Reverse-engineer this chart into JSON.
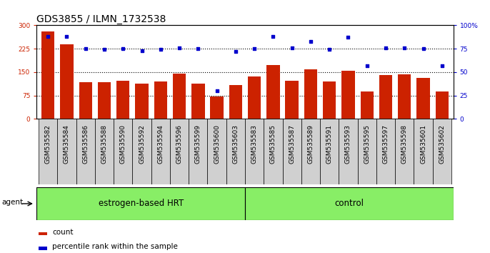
{
  "title": "GDS3855 / ILMN_1732538",
  "samples": [
    "GSM535582",
    "GSM535584",
    "GSM535586",
    "GSM535588",
    "GSM535590",
    "GSM535592",
    "GSM535594",
    "GSM535596",
    "GSM535599",
    "GSM535600",
    "GSM535603",
    "GSM535583",
    "GSM535585",
    "GSM535587",
    "GSM535589",
    "GSM535591",
    "GSM535593",
    "GSM535595",
    "GSM535597",
    "GSM535598",
    "GSM535601",
    "GSM535602"
  ],
  "counts": [
    280,
    240,
    117,
    117,
    122,
    112,
    120,
    145,
    112,
    73,
    108,
    135,
    172,
    122,
    158,
    120,
    155,
    88,
    140,
    142,
    132,
    88
  ],
  "percentiles": [
    88,
    88,
    75,
    74,
    75,
    73,
    74,
    76,
    75,
    30,
    72,
    75,
    88,
    76,
    83,
    74,
    87,
    57,
    76,
    76,
    75,
    57
  ],
  "group_labels": [
    "estrogen-based HRT",
    "control"
  ],
  "group_split": 11,
  "n_samples": 22,
  "bar_color": "#cc2200",
  "dot_color": "#0000cc",
  "group_color": "#88ee66",
  "tickbox_color": "#d0d0d0",
  "ylim_left": [
    0,
    300
  ],
  "ylim_right": [
    0,
    100
  ],
  "yticks_left": [
    0,
    75,
    150,
    225,
    300
  ],
  "yticks_right": [
    0,
    25,
    50,
    75,
    100
  ],
  "agent_label": "agent",
  "legend_count": "count",
  "legend_pct": "percentile rank within the sample",
  "title_fontsize": 10,
  "tick_fontsize": 6.5,
  "group_fontsize": 8.5,
  "legend_fontsize": 7.5
}
